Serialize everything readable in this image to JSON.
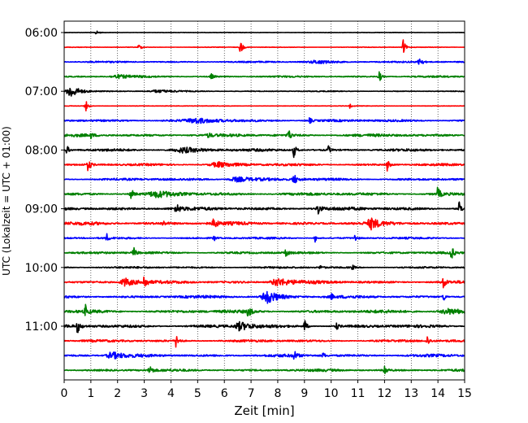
{
  "chart_data": {
    "type": "line",
    "subtype": "seismogram-helicorder",
    "title": "",
    "xlabel": "Zeit  [min]",
    "ylabel": "UTC (Lokalzeit = UTC + 01:00)",
    "xlim": [
      0,
      15
    ],
    "x_ticks": [
      "0",
      "1",
      "2",
      "3",
      "4",
      "5",
      "6",
      "7",
      "8",
      "9",
      "10",
      "11",
      "12",
      "13",
      "14",
      "15"
    ],
    "y_tick_labels": [
      "06:00",
      "07:00",
      "08:00",
      "09:00",
      "10:00",
      "11:00"
    ],
    "grid": "vertical-dotted",
    "legend": "none",
    "line_colors": [
      "#000000",
      "#ff0000",
      "#0000ff",
      "#008000"
    ],
    "traces": [
      {
        "start": "06:00",
        "color": "#000000",
        "noise": 0.25,
        "bursts": [
          {
            "x": 1.2,
            "a": 2.2,
            "w": 0.08
          }
        ]
      },
      {
        "start": "06:15",
        "color": "#ff0000",
        "noise": 0.3,
        "bursts": [
          {
            "x": 2.8,
            "a": 4,
            "w": 0.06
          },
          {
            "x": 6.6,
            "a": 9,
            "w": 0.06
          },
          {
            "x": 12.7,
            "a": 9,
            "w": 0.06
          }
        ]
      },
      {
        "start": "06:30",
        "color": "#0000ff",
        "noise": 0.8,
        "bursts": [
          {
            "x": 13.3,
            "a": 8,
            "w": 0.07
          },
          {
            "x": 9.5,
            "a": 2,
            "w": 0.5
          }
        ]
      },
      {
        "start": "06:45",
        "color": "#008000",
        "noise": 0.9,
        "bursts": [
          {
            "x": 5.5,
            "a": 4,
            "w": 0.06
          },
          {
            "x": 11.8,
            "a": 7,
            "w": 0.06
          },
          {
            "x": 2.0,
            "a": 2,
            "w": 0.4
          }
        ]
      },
      {
        "start": "07:00",
        "color": "#000000",
        "noise": 0.5,
        "bursts": [
          {
            "x": 0.25,
            "a": 8,
            "w": 0.25
          },
          {
            "x": 3.5,
            "a": 1.5,
            "w": 0.5
          }
        ]
      },
      {
        "start": "07:15",
        "color": "#ff0000",
        "noise": 0.3,
        "bursts": [
          {
            "x": 0.8,
            "a": 8,
            "w": 0.06
          },
          {
            "x": 10.7,
            "a": 2.5,
            "w": 0.05
          }
        ]
      },
      {
        "start": "07:30",
        "color": "#0000ff",
        "noise": 1.3,
        "bursts": [
          {
            "x": 5.0,
            "a": 2.5,
            "w": 0.6
          },
          {
            "x": 9.2,
            "a": 4,
            "w": 0.05
          }
        ]
      },
      {
        "start": "07:45",
        "color": "#008000",
        "noise": 1.5,
        "bursts": [
          {
            "x": 8.4,
            "a": 8,
            "w": 0.06
          },
          {
            "x": 1.0,
            "a": 3,
            "w": 0.06
          },
          {
            "x": 5.4,
            "a": 3,
            "w": 0.06
          }
        ]
      },
      {
        "start": "08:00",
        "color": "#000000",
        "noise": 1.3,
        "bursts": [
          {
            "x": 0.1,
            "a": 6,
            "w": 0.05
          },
          {
            "x": 8.6,
            "a": 9,
            "w": 0.06
          },
          {
            "x": 9.9,
            "a": 5,
            "w": 0.05
          },
          {
            "x": 4.5,
            "a": 3,
            "w": 0.6
          }
        ]
      },
      {
        "start": "08:15",
        "color": "#ff0000",
        "noise": 1.2,
        "bursts": [
          {
            "x": 0.9,
            "a": 8,
            "w": 0.06
          },
          {
            "x": 12.1,
            "a": 7,
            "w": 0.06
          },
          {
            "x": 5.8,
            "a": 3,
            "w": 0.5
          }
        ]
      },
      {
        "start": "08:30",
        "color": "#0000ff",
        "noise": 1.3,
        "bursts": [
          {
            "x": 8.6,
            "a": 7,
            "w": 0.08
          },
          {
            "x": 6.5,
            "a": 3,
            "w": 0.5
          }
        ]
      },
      {
        "start": "08:45",
        "color": "#008000",
        "noise": 1.6,
        "bursts": [
          {
            "x": 2.5,
            "a": 8,
            "w": 0.06
          },
          {
            "x": 14.0,
            "a": 9,
            "w": 0.06
          },
          {
            "x": 3.5,
            "a": 3,
            "w": 0.5
          }
        ]
      },
      {
        "start": "09:00",
        "color": "#000000",
        "noise": 1.8,
        "bursts": [
          {
            "x": 4.2,
            "a": 8,
            "w": 0.07
          },
          {
            "x": 9.5,
            "a": 9,
            "w": 0.06
          },
          {
            "x": 14.8,
            "a": 8,
            "w": 0.06
          }
        ]
      },
      {
        "start": "09:15",
        "color": "#ff0000",
        "noise": 1.8,
        "bursts": [
          {
            "x": 5.6,
            "a": 9,
            "w": 0.06
          },
          {
            "x": 11.5,
            "a": 6,
            "w": 0.2
          },
          {
            "x": 3.7,
            "a": 3,
            "w": 0.06
          }
        ]
      },
      {
        "start": "09:30",
        "color": "#0000ff",
        "noise": 1.0,
        "bursts": [
          {
            "x": 1.6,
            "a": 5,
            "w": 0.05
          },
          {
            "x": 5.6,
            "a": 4,
            "w": 0.05
          },
          {
            "x": 9.4,
            "a": 5,
            "w": 0.05
          },
          {
            "x": 10.9,
            "a": 5,
            "w": 0.05
          }
        ]
      },
      {
        "start": "09:45",
        "color": "#008000",
        "noise": 1.2,
        "bursts": [
          {
            "x": 2.6,
            "a": 7,
            "w": 0.06
          },
          {
            "x": 8.3,
            "a": 6,
            "w": 0.06
          },
          {
            "x": 14.5,
            "a": 9,
            "w": 0.06
          }
        ]
      },
      {
        "start": "10:00",
        "color": "#000000",
        "noise": 1.0,
        "bursts": [
          {
            "x": 9.6,
            "a": 3,
            "w": 0.05
          },
          {
            "x": 10.8,
            "a": 3,
            "w": 0.05
          }
        ]
      },
      {
        "start": "10:15",
        "color": "#ff0000",
        "noise": 1.5,
        "bursts": [
          {
            "x": 2.3,
            "a": 5,
            "w": 0.3
          },
          {
            "x": 3.0,
            "a": 9,
            "w": 0.06
          },
          {
            "x": 8.0,
            "a": 5,
            "w": 0.4
          },
          {
            "x": 14.2,
            "a": 8,
            "w": 0.06
          }
        ]
      },
      {
        "start": "10:30",
        "color": "#0000ff",
        "noise": 1.5,
        "bursts": [
          {
            "x": 7.6,
            "a": 8,
            "w": 0.3
          },
          {
            "x": 10.0,
            "a": 4,
            "w": 0.05
          },
          {
            "x": 14.2,
            "a": 6,
            "w": 0.05
          }
        ]
      },
      {
        "start": "10:45",
        "color": "#008000",
        "noise": 1.7,
        "bursts": [
          {
            "x": 0.8,
            "a": 7,
            "w": 0.06
          },
          {
            "x": 6.9,
            "a": 9,
            "w": 0.06
          },
          {
            "x": 14.4,
            "a": 3,
            "w": 0.5
          }
        ]
      },
      {
        "start": "11:00",
        "color": "#000000",
        "noise": 1.6,
        "bursts": [
          {
            "x": 0.5,
            "a": 8,
            "w": 0.06
          },
          {
            "x": 6.6,
            "a": 5,
            "w": 0.3
          },
          {
            "x": 9.0,
            "a": 9,
            "w": 0.06
          },
          {
            "x": 10.2,
            "a": 5,
            "w": 0.05
          }
        ]
      },
      {
        "start": "11:15",
        "color": "#ff0000",
        "noise": 1.3,
        "bursts": [
          {
            "x": 4.2,
            "a": 9,
            "w": 0.06
          },
          {
            "x": 13.6,
            "a": 6,
            "w": 0.06
          }
        ]
      },
      {
        "start": "11:30",
        "color": "#0000ff",
        "noise": 1.5,
        "bursts": [
          {
            "x": 1.8,
            "a": 4,
            "w": 0.3
          },
          {
            "x": 8.6,
            "a": 7,
            "w": 0.06
          },
          {
            "x": 9.7,
            "a": 4,
            "w": 0.05
          }
        ]
      },
      {
        "start": "11:45",
        "color": "#008000",
        "noise": 1.3,
        "bursts": [
          {
            "x": 3.2,
            "a": 8,
            "w": 0.06
          },
          {
            "x": 12.0,
            "a": 7,
            "w": 0.06
          }
        ]
      }
    ]
  }
}
